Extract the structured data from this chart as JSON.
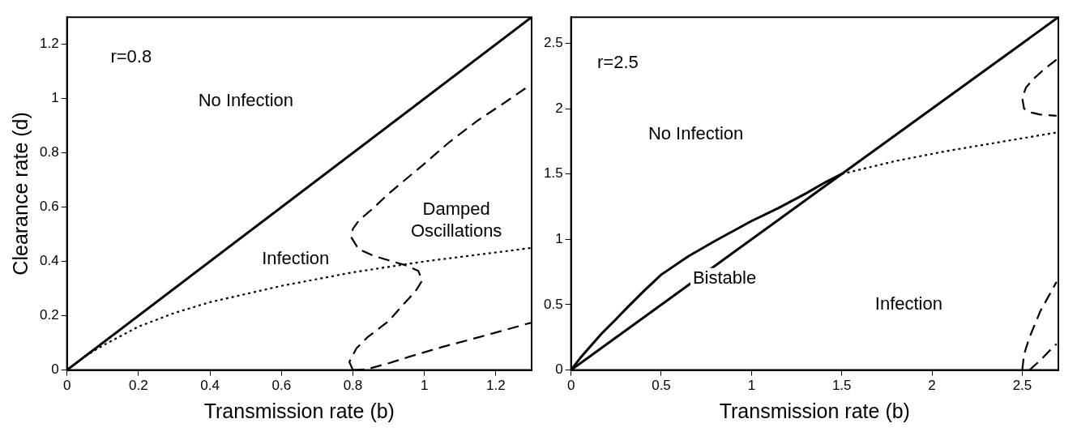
{
  "chart_data": [
    {
      "type": "line",
      "xlabel": "Transmission rate (b)",
      "ylabel": "Clearance rate (d)",
      "xlim": [
        0,
        1.3
      ],
      "ylim": [
        0,
        1.3
      ],
      "xticks": [
        0,
        0.2,
        0.4,
        0.6,
        0.8,
        1,
        1.2
      ],
      "yticks": [
        0,
        0.2,
        0.4,
        0.6,
        0.8,
        1,
        1.2
      ],
      "grid": false,
      "legend": false,
      "marker": "none",
      "series": [
        {
          "color": "#000000",
          "line_style": "solid",
          "x": [
            0,
            1.3
          ],
          "values": [
            0,
            1.3
          ]
        },
        {
          "color": "#000000",
          "line_style": "dotted",
          "x": [
            0,
            0.05,
            0.1,
            0.2,
            0.3,
            0.4,
            0.6,
            0.8,
            1.0,
            1.15,
            1.3
          ],
          "values": [
            0,
            0.05,
            0.09,
            0.16,
            0.21,
            0.25,
            0.31,
            0.36,
            0.4,
            0.425,
            0.45
          ]
        },
        {
          "color": "#000000",
          "line_style": "dashed",
          "x": [
            0.8,
            0.79,
            0.81,
            0.84,
            0.9,
            0.94,
            0.975,
            0.994,
            0.983,
            0.95,
            0.91,
            0.86,
            0.816,
            0.795,
            0.8,
            0.816,
            0.86,
            0.9,
            1.0,
            1.07,
            1.15,
            1.23,
            1.296
          ],
          "values": [
            0,
            0.03,
            0.08,
            0.12,
            0.18,
            0.24,
            0.29,
            0.33,
            0.365,
            0.385,
            0.4,
            0.42,
            0.445,
            0.49,
            0.52,
            0.55,
            0.6,
            0.65,
            0.76,
            0.84,
            0.92,
            0.99,
            1.05
          ]
        },
        {
          "color": "#000000",
          "line_style": "dashed",
          "x": [
            0.8,
            0.84,
            0.9,
            0.96,
            1.05,
            1.15,
            1.3
          ],
          "values": [
            0,
            0.003,
            0.025,
            0.05,
            0.085,
            0.12,
            0.175
          ]
        }
      ],
      "annotations": [
        "r=0.8",
        "No Infection",
        "Infection",
        "Damped\nOscillations"
      ]
    },
    {
      "type": "line",
      "xlabel": "Transmission rate (b)",
      "xlim": [
        0,
        2.7
      ],
      "ylim": [
        0,
        2.7
      ],
      "xticks": [
        0,
        0.5,
        1,
        1.5,
        2,
        2.5
      ],
      "yticks": [
        0,
        0.5,
        1,
        1.5,
        2,
        2.5
      ],
      "grid": false,
      "legend": false,
      "marker": "none",
      "series": [
        {
          "color": "#000000",
          "line_style": "solid",
          "x": [
            0,
            2.7
          ],
          "values": [
            0,
            2.7
          ]
        },
        {
          "color": "#000000",
          "line_style": "solid",
          "x": [
            0,
            0.05,
            0.1,
            0.17,
            0.25,
            0.32,
            0.4,
            0.5,
            0.65,
            0.8,
            1.0,
            1.15,
            1.3,
            1.4,
            1.5
          ],
          "values": [
            0,
            0.09,
            0.17,
            0.28,
            0.39,
            0.49,
            0.6,
            0.73,
            0.87,
            0.99,
            1.14,
            1.24,
            1.35,
            1.43,
            1.5
          ]
        },
        {
          "color": "#000000",
          "line_style": "dotted",
          "x": [
            1.5,
            1.8,
            2.08,
            2.4,
            2.7
          ],
          "values": [
            1.5,
            1.6,
            1.675,
            1.75,
            1.82
          ]
        },
        {
          "color": "#000000",
          "line_style": "dashed",
          "x": [
            2.69,
            2.62,
            2.56,
            2.52,
            2.5,
            2.51,
            2.55,
            2.6,
            2.69
          ],
          "values": [
            2.375,
            2.3,
            2.225,
            2.16,
            2.08,
            2.0,
            1.97,
            1.955,
            1.945
          ]
        },
        {
          "color": "#000000",
          "line_style": "dashed",
          "x": [
            2.5,
            2.51,
            2.54,
            2.6,
            2.69
          ],
          "values": [
            0,
            0.12,
            0.25,
            0.45,
            0.675
          ]
        },
        {
          "color": "#000000",
          "line_style": "dashed",
          "x": [
            2.54,
            2.6,
            2.66,
            2.69
          ],
          "values": [
            0,
            0.075,
            0.16,
            0.2
          ]
        }
      ],
      "annotations": [
        "r=2.5",
        "No Infection",
        "Bistable",
        "Infection"
      ]
    }
  ]
}
